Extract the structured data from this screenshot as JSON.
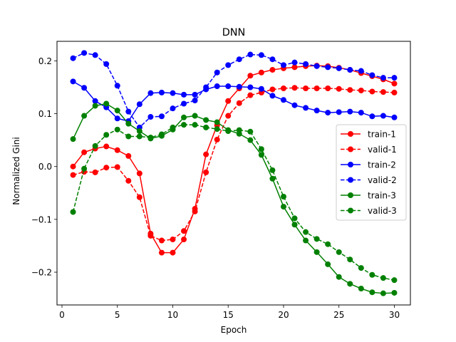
{
  "chart_data": {
    "type": "line",
    "title": "DNN",
    "xlabel": "Epoch",
    "ylabel": "Normalized Gini",
    "xlim": [
      -0.45,
      31.45
    ],
    "ylim": [
      -0.262,
      0.237
    ],
    "x_ticks": [
      0,
      5,
      10,
      15,
      20,
      25,
      30
    ],
    "x_tick_labels": [
      "0",
      "5",
      "10",
      "15",
      "20",
      "25",
      "30"
    ],
    "y_ticks": [
      -0.2,
      -0.1,
      0.0,
      0.1,
      0.2
    ],
    "y_tick_labels": [
      "−0.2",
      "−0.1",
      "0.0",
      "0.1",
      "0.2"
    ],
    "grid": false,
    "legend_position": "right",
    "x": [
      1,
      2,
      3,
      4,
      5,
      6,
      7,
      8,
      9,
      10,
      11,
      12,
      13,
      14,
      15,
      16,
      17,
      18,
      19,
      20,
      21,
      22,
      23,
      24,
      25,
      26,
      27,
      28,
      29,
      30
    ],
    "series": [
      {
        "name": "train-1",
        "color": "#ff0000",
        "linestyle": "solid",
        "values": [
          0.0,
          0.027,
          0.034,
          0.038,
          0.031,
          0.02,
          -0.013,
          -0.127,
          -0.163,
          -0.163,
          -0.138,
          -0.08,
          0.023,
          0.078,
          0.124,
          0.148,
          0.172,
          0.178,
          0.183,
          0.186,
          0.188,
          0.19,
          0.191,
          0.19,
          0.187,
          0.183,
          0.177,
          0.171,
          0.165,
          0.157
        ]
      },
      {
        "name": "valid-1",
        "color": "#ff0000",
        "linestyle": "dashed",
        "values": [
          -0.016,
          -0.01,
          -0.011,
          -0.002,
          -0.001,
          -0.027,
          -0.058,
          -0.131,
          -0.14,
          -0.138,
          -0.122,
          -0.085,
          -0.011,
          0.051,
          0.096,
          0.12,
          0.135,
          0.14,
          0.146,
          0.148,
          0.149,
          0.148,
          0.148,
          0.148,
          0.147,
          0.145,
          0.144,
          0.142,
          0.141,
          0.14
        ]
      },
      {
        "name": "train-2",
        "color": "#0000ff",
        "linestyle": "solid",
        "values": [
          0.161,
          0.149,
          0.124,
          0.112,
          0.091,
          0.086,
          0.118,
          0.139,
          0.14,
          0.139,
          0.136,
          0.136,
          0.146,
          0.152,
          0.152,
          0.151,
          0.15,
          0.147,
          0.134,
          0.126,
          0.116,
          0.111,
          0.106,
          0.102,
          0.103,
          0.104,
          0.102,
          0.095,
          0.096,
          0.093
        ]
      },
      {
        "name": "valid-2",
        "color": "#0000ff",
        "linestyle": "dashed",
        "values": [
          0.205,
          0.215,
          0.211,
          0.194,
          0.153,
          0.104,
          0.074,
          0.094,
          0.095,
          0.11,
          0.119,
          0.125,
          0.15,
          0.178,
          0.192,
          0.203,
          0.212,
          0.211,
          0.203,
          0.192,
          0.197,
          0.194,
          0.19,
          0.188,
          0.186,
          0.183,
          0.181,
          0.173,
          0.168,
          0.168
        ]
      },
      {
        "name": "train-3",
        "color": "#008000",
        "linestyle": "solid",
        "values": [
          0.052,
          0.096,
          0.115,
          0.119,
          0.106,
          0.081,
          0.067,
          0.053,
          0.058,
          0.07,
          0.093,
          0.096,
          0.088,
          0.084,
          0.069,
          0.062,
          0.05,
          0.022,
          -0.023,
          -0.076,
          -0.11,
          -0.14,
          -0.162,
          -0.185,
          -0.209,
          -0.222,
          -0.231,
          -0.238,
          -0.24,
          -0.239
        ]
      },
      {
        "name": "valid-3",
        "color": "#008000",
        "linestyle": "dashed",
        "values": [
          -0.086,
          -0.004,
          0.039,
          0.06,
          0.07,
          0.057,
          0.057,
          0.055,
          0.061,
          0.074,
          0.079,
          0.079,
          0.074,
          0.071,
          0.067,
          0.069,
          0.066,
          0.033,
          -0.007,
          -0.057,
          -0.098,
          -0.124,
          -0.137,
          -0.147,
          -0.162,
          -0.176,
          -0.192,
          -0.205,
          -0.211,
          -0.215
        ]
      }
    ]
  }
}
